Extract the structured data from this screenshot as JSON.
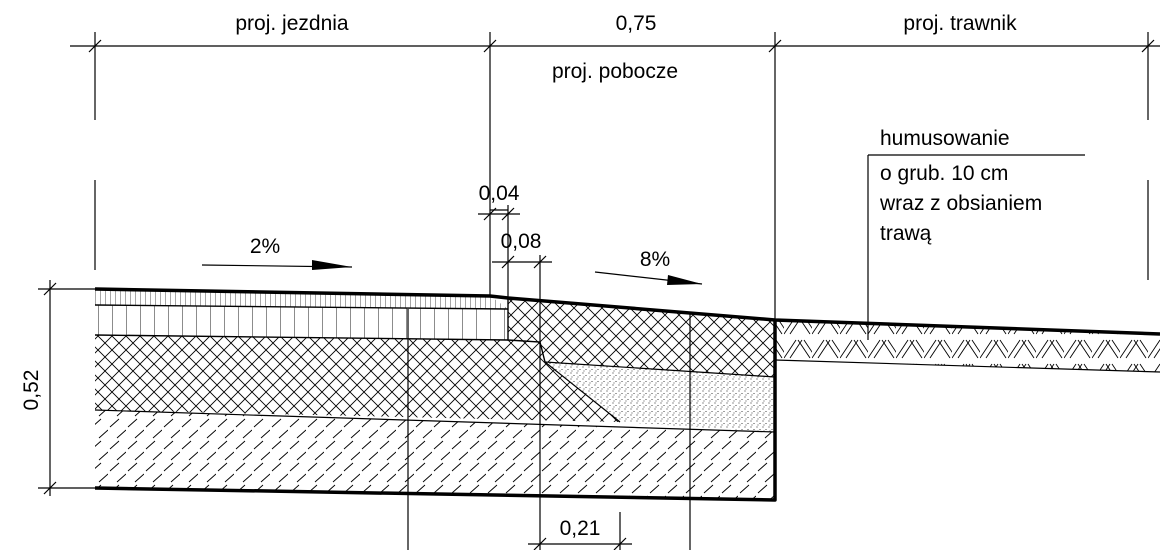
{
  "dimensions": {
    "jezdnia": "proj. jezdnia",
    "pobocze_width": "0,75",
    "trawnik": "proj. trawnik",
    "pobocze": "proj. pobocze",
    "d_004": "0,04",
    "d_008": "0,08",
    "d_021": "0,21",
    "depth": "0,52"
  },
  "slopes": {
    "road": "2%",
    "shoulder": "8%"
  },
  "note": {
    "line1": "humusowanie",
    "line2": "o grub. 10 cm",
    "line3": "wraz z obsianiem",
    "line4": "trawą"
  }
}
